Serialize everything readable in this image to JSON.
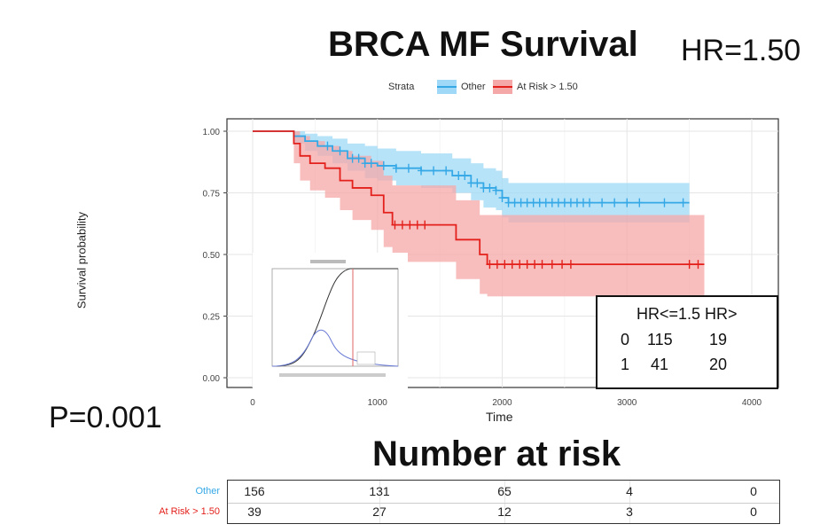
{
  "title": "BRCA MF Survival",
  "hr_label": "HR=1.50",
  "p_value": "P=0.001",
  "risk_title": "Number at risk",
  "colors": {
    "other": "#35a8e6",
    "at_risk": "#e3201b",
    "other_band": "#9fd9f7",
    "at_risk_band": "#f5a8a8"
  },
  "chart_data": {
    "type": "line",
    "xlabel": "Time",
    "ylabel": "Survival probability",
    "xlim": [
      0,
      4000
    ],
    "ylim": [
      0,
      1
    ],
    "x_ticks": [
      "0",
      "1000",
      "2000",
      "3000",
      "4000"
    ],
    "y_ticks": [
      "0.00",
      "0.25",
      "0.50",
      "0.75",
      "1.00"
    ],
    "legend": {
      "title": "Strata",
      "placement": "top",
      "entries": [
        "Other",
        "At Risk > 1.50"
      ]
    },
    "series": [
      {
        "name": "Other",
        "steps": [
          [
            0,
            1.0
          ],
          [
            290,
            1.0
          ],
          [
            330,
            0.98
          ],
          [
            420,
            0.96
          ],
          [
            520,
            0.94
          ],
          [
            640,
            0.92
          ],
          [
            760,
            0.89
          ],
          [
            900,
            0.87
          ],
          [
            1000,
            0.86
          ],
          [
            1150,
            0.85
          ],
          [
            1350,
            0.84
          ],
          [
            1500,
            0.84
          ],
          [
            1600,
            0.82
          ],
          [
            1750,
            0.79
          ],
          [
            1850,
            0.77
          ],
          [
            1950,
            0.76
          ],
          [
            2000,
            0.73
          ],
          [
            2050,
            0.71
          ],
          [
            2200,
            0.71
          ],
          [
            3500,
            0.71
          ]
        ],
        "upper": [
          [
            0,
            1.0
          ],
          [
            290,
            1.0
          ],
          [
            330,
            1.0
          ],
          [
            420,
            0.99
          ],
          [
            520,
            0.98
          ],
          [
            640,
            0.97
          ],
          [
            760,
            0.95
          ],
          [
            900,
            0.94
          ],
          [
            1000,
            0.93
          ],
          [
            1150,
            0.92
          ],
          [
            1350,
            0.91
          ],
          [
            1500,
            0.91
          ],
          [
            1600,
            0.89
          ],
          [
            1750,
            0.87
          ],
          [
            1850,
            0.85
          ],
          [
            1950,
            0.84
          ],
          [
            2000,
            0.81
          ],
          [
            2050,
            0.79
          ],
          [
            2200,
            0.79
          ],
          [
            3500,
            0.79
          ]
        ],
        "lower": [
          [
            0,
            1.0
          ],
          [
            290,
            1.0
          ],
          [
            330,
            0.95
          ],
          [
            420,
            0.92
          ],
          [
            520,
            0.9
          ],
          [
            640,
            0.87
          ],
          [
            760,
            0.84
          ],
          [
            900,
            0.81
          ],
          [
            1000,
            0.8
          ],
          [
            1150,
            0.78
          ],
          [
            1350,
            0.77
          ],
          [
            1500,
            0.77
          ],
          [
            1600,
            0.75
          ],
          [
            1750,
            0.72
          ],
          [
            1850,
            0.69
          ],
          [
            1950,
            0.68
          ],
          [
            2000,
            0.65
          ],
          [
            2050,
            0.63
          ],
          [
            2200,
            0.63
          ],
          [
            3500,
            0.63
          ]
        ],
        "censor_x": [
          600,
          700,
          800,
          850,
          900,
          950,
          1050,
          1150,
          1250,
          1350,
          1450,
          1550,
          1650,
          1700,
          1750,
          1800,
          1850,
          1900,
          1950,
          2000,
          2050,
          2100,
          2150,
          2200,
          2250,
          2300,
          2350,
          2400,
          2450,
          2500,
          2550,
          2600,
          2650,
          2700,
          2800,
          2900,
          3000,
          3100,
          3300,
          3450
        ]
      },
      {
        "name": "At Risk > 1.50",
        "steps": [
          [
            0,
            1.0
          ],
          [
            290,
            1.0
          ],
          [
            330,
            0.95
          ],
          [
            380,
            0.9
          ],
          [
            460,
            0.87
          ],
          [
            580,
            0.85
          ],
          [
            700,
            0.8
          ],
          [
            800,
            0.77
          ],
          [
            950,
            0.74
          ],
          [
            1050,
            0.67
          ],
          [
            1120,
            0.62
          ],
          [
            1600,
            0.62
          ],
          [
            1630,
            0.56
          ],
          [
            1820,
            0.5
          ],
          [
            1880,
            0.46
          ],
          [
            3620,
            0.46
          ]
        ],
        "upper": [
          [
            0,
            1.0
          ],
          [
            290,
            1.0
          ],
          [
            330,
            1.0
          ],
          [
            380,
            0.98
          ],
          [
            460,
            0.96
          ],
          [
            580,
            0.94
          ],
          [
            700,
            0.92
          ],
          [
            800,
            0.9
          ],
          [
            950,
            0.88
          ],
          [
            1050,
            0.82
          ],
          [
            1120,
            0.78
          ],
          [
            1600,
            0.78
          ],
          [
            1630,
            0.72
          ],
          [
            1820,
            0.66
          ],
          [
            1880,
            0.66
          ],
          [
            3620,
            0.66
          ]
        ],
        "lower": [
          [
            0,
            1.0
          ],
          [
            290,
            1.0
          ],
          [
            330,
            0.87
          ],
          [
            380,
            0.8
          ],
          [
            460,
            0.76
          ],
          [
            580,
            0.73
          ],
          [
            700,
            0.68
          ],
          [
            800,
            0.64
          ],
          [
            950,
            0.6
          ],
          [
            1050,
            0.53
          ],
          [
            1120,
            0.47
          ],
          [
            1600,
            0.47
          ],
          [
            1630,
            0.4
          ],
          [
            1820,
            0.34
          ],
          [
            1880,
            0.33
          ],
          [
            3620,
            0.33
          ]
        ],
        "censor_x": [
          1140,
          1200,
          1260,
          1320,
          1380,
          1900,
          1960,
          2020,
          2080,
          2140,
          2200,
          2260,
          2320,
          2400,
          2480,
          2550,
          3500,
          3570
        ]
      }
    ]
  },
  "hr_table": {
    "header": "HR<=1.5 HR>",
    "rows": [
      {
        "label": "0",
        "a": "115",
        "b": "19"
      },
      {
        "label": "1",
        "a": "41",
        "b": "20"
      }
    ]
  },
  "risk_table": {
    "rows": [
      {
        "label": "Other",
        "values": [
          "156",
          "131",
          "65",
          "4",
          "0"
        ]
      },
      {
        "label": "At Risk > 1.50",
        "values": [
          "39",
          "27",
          "12",
          "3",
          "0"
        ]
      }
    ]
  }
}
